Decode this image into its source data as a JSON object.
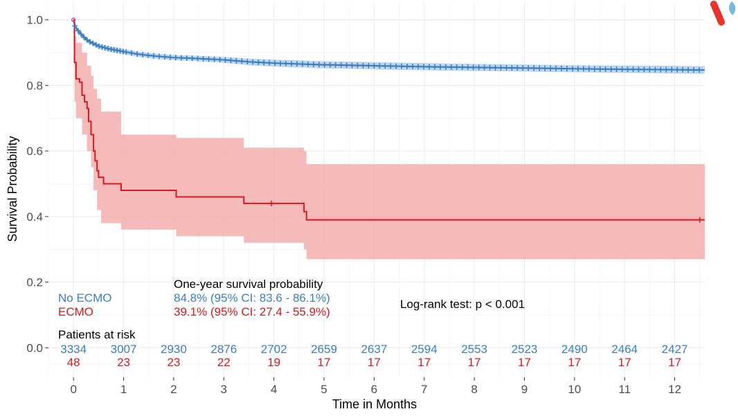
{
  "chart_data": {
    "type": "line",
    "title": "",
    "xlabel": "Time in Months",
    "ylabel": "Survival Probability",
    "xlim": [
      -0.5,
      12.6
    ],
    "ylim": [
      -0.09,
      1.05
    ],
    "x_ticks": [
      0,
      1,
      2,
      3,
      4,
      5,
      6,
      7,
      8,
      9,
      10,
      11,
      12
    ],
    "y_ticks": [
      0.0,
      0.2,
      0.4,
      0.6,
      0.8,
      1.0
    ],
    "y_tick_labels": [
      "0.0",
      "0.2",
      "0.4",
      "0.6",
      "0.8",
      "1.0"
    ],
    "grid": true,
    "series": [
      {
        "name": "No ECMO",
        "color": "#3a7fc2",
        "band_color": "#a9c9e8",
        "x": [
          0,
          0.02,
          0.05,
          0.1,
          0.2,
          0.3,
          0.5,
          0.7,
          1,
          1.3,
          1.6,
          2,
          2.5,
          3,
          3.5,
          4,
          5,
          6,
          7,
          8,
          9,
          10,
          11,
          12,
          12.6
        ],
        "survival": [
          1.0,
          0.985,
          0.975,
          0.965,
          0.948,
          0.935,
          0.92,
          0.912,
          0.903,
          0.895,
          0.89,
          0.885,
          0.882,
          0.878,
          0.872,
          0.868,
          0.863,
          0.86,
          0.857,
          0.855,
          0.853,
          0.851,
          0.849,
          0.848,
          0.847
        ],
        "lower": [
          1.0,
          0.98,
          0.97,
          0.96,
          0.942,
          0.928,
          0.912,
          0.904,
          0.895,
          0.887,
          0.882,
          0.877,
          0.874,
          0.869,
          0.862,
          0.857,
          0.852,
          0.849,
          0.846,
          0.844,
          0.842,
          0.84,
          0.838,
          0.836,
          0.835
        ],
        "upper": [
          1.0,
          0.99,
          0.982,
          0.972,
          0.955,
          0.942,
          0.928,
          0.92,
          0.911,
          0.903,
          0.898,
          0.893,
          0.89,
          0.887,
          0.882,
          0.879,
          0.874,
          0.871,
          0.868,
          0.866,
          0.864,
          0.862,
          0.861,
          0.86,
          0.859
        ],
        "one_year_survival": "84.8% (95% CI: 83.6 - 86.1%)",
        "at_risk": [
          3334,
          3007,
          2930,
          2876,
          2702,
          2659,
          2637,
          2594,
          2553,
          2523,
          2490,
          2464,
          2427
        ]
      },
      {
        "name": "ECMO",
        "color": "#d7191c",
        "band_color": "#f3a9a9",
        "steps": [
          [
            0,
            1.0
          ],
          [
            0.02,
            0.87
          ],
          [
            0.05,
            0.82
          ],
          [
            0.12,
            0.81
          ],
          [
            0.17,
            0.77
          ],
          [
            0.22,
            0.75
          ],
          [
            0.27,
            0.73
          ],
          [
            0.3,
            0.69
          ],
          [
            0.35,
            0.65
          ],
          [
            0.4,
            0.6
          ],
          [
            0.43,
            0.57
          ],
          [
            0.47,
            0.54
          ],
          [
            0.5,
            0.52
          ],
          [
            0.6,
            0.5
          ],
          [
            0.95,
            0.48
          ],
          [
            2.05,
            0.46
          ],
          [
            3.4,
            0.44
          ],
          [
            4.6,
            0.415
          ],
          [
            4.65,
            0.39
          ],
          [
            12.6,
            0.39
          ]
        ],
        "band_steps": [
          [
            0,
            1.0,
            1.0
          ],
          [
            0.02,
            0.75,
            0.95
          ],
          [
            0.05,
            0.7,
            0.93
          ],
          [
            0.17,
            0.65,
            0.9
          ],
          [
            0.27,
            0.6,
            0.86
          ],
          [
            0.35,
            0.55,
            0.83
          ],
          [
            0.4,
            0.48,
            0.79
          ],
          [
            0.47,
            0.42,
            0.76
          ],
          [
            0.55,
            0.38,
            0.72
          ],
          [
            0.95,
            0.36,
            0.65
          ],
          [
            2.05,
            0.34,
            0.64
          ],
          [
            3.4,
            0.32,
            0.61
          ],
          [
            4.6,
            0.3,
            0.6
          ],
          [
            4.65,
            0.27,
            0.56
          ],
          [
            12.6,
            0.27,
            0.56
          ]
        ],
        "censor_x": [
          3.95,
          12.5
        ],
        "one_year_survival": "39.1% (95% CI: 27.4 - 55.9%)",
        "at_risk": [
          48,
          23,
          23,
          22,
          19,
          17,
          17,
          17,
          17,
          17,
          17,
          17,
          17
        ]
      }
    ],
    "annotations": {
      "one_year_header": "One-year survival probability",
      "logrank": "Log-rank test: p < 0.001",
      "risk_header": "Patients at risk",
      "legend_labels": [
        "No ECMO",
        "ECMO"
      ]
    }
  },
  "logo": {
    "name": "brand-logo",
    "colors": [
      "#e8332a",
      "#7cb7dc"
    ]
  }
}
